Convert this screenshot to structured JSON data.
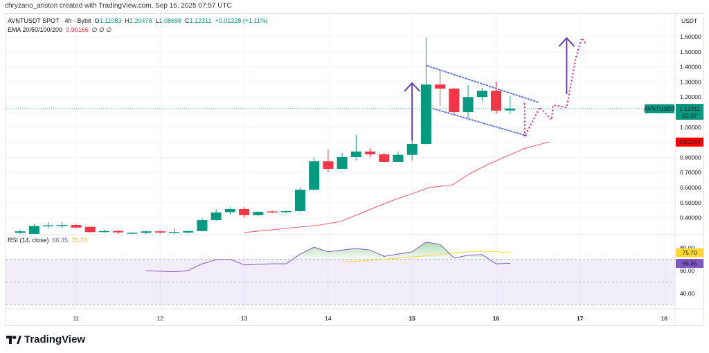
{
  "credit": "chryzano_ariston created with TradingView.com, Sep 16, 2025 07:57 UTC",
  "symbol": {
    "title": "AVNTUSDT SPOT · 4h · Bybit",
    "o_label": "O",
    "o": "1.11083",
    "h_label": "H",
    "h": "1.20478",
    "l_label": "L",
    "l": "1.08698",
    "c_label": "C",
    "c": "1.12311",
    "change": "+0.01228 (+1.11%)"
  },
  "ema_legend": {
    "label": "EMA 20/50/100/200",
    "value": "0.90166",
    "others": "∅  ∅  ∅"
  },
  "rsi_legend": {
    "label": "RSI (14, close)",
    "rsi": "66.35",
    "ma": "75.70"
  },
  "price_axis": {
    "currency": "USDT",
    "ticks": [
      "1.60000",
      "1.50000",
      "1.40000",
      "1.30000",
      "1.20000",
      "1.00000",
      "0.80000",
      "0.70000",
      "0.60000",
      "0.50000",
      "0.40000"
    ]
  },
  "rsi_axis": {
    "ticks": [
      "80.00",
      "60.00",
      "40.00"
    ]
  },
  "time_axis": {
    "ticks": [
      "11",
      "12",
      "13",
      "14",
      "15",
      "16",
      "17",
      "18"
    ]
  },
  "last_price": {
    "symbol": "AVNTUSDT",
    "price": "1.12311",
    "countdown": "02:37"
  },
  "ema_label": "0.90166",
  "rsi_labels": {
    "ma": "75.70",
    "rsi": "66.35"
  },
  "colors": {
    "up": "#089981",
    "down": "#f23645",
    "ema": "#f7525f",
    "rsi": "#7e57c2",
    "rsi_ma": "#fdd835",
    "drawing_line": "#5b6ee1",
    "arrow": "#673ab7",
    "projection": "#e91e63"
  },
  "logo": "TradingView",
  "chart_data": {
    "type": "candlestick",
    "interval": "4h",
    "price_range": [
      0.3,
      1.62
    ],
    "candles": [
      [
        0.3,
        0.32,
        0.28,
        0.31
      ],
      [
        0.29,
        0.36,
        0.28,
        0.345
      ],
      [
        0.345,
        0.37,
        0.33,
        0.35
      ],
      [
        0.35,
        0.37,
        0.33,
        0.352
      ],
      [
        0.352,
        0.36,
        0.33,
        0.335
      ],
      [
        0.34,
        0.342,
        0.3,
        0.305
      ],
      [
        0.305,
        0.32,
        0.3,
        0.312
      ],
      [
        0.312,
        0.32,
        0.29,
        0.303
      ],
      [
        0.3,
        0.302,
        0.29,
        0.301
      ],
      [
        0.3,
        0.315,
        0.29,
        0.31
      ],
      [
        0.31,
        0.315,
        0.295,
        0.302
      ],
      [
        0.302,
        0.33,
        0.295,
        0.305
      ],
      [
        0.302,
        0.315,
        0.295,
        0.312
      ],
      [
        0.312,
        0.4,
        0.31,
        0.384
      ],
      [
        0.384,
        0.455,
        0.38,
        0.435
      ],
      [
        0.437,
        0.47,
        0.42,
        0.458
      ],
      [
        0.458,
        0.47,
        0.4,
        0.417
      ],
      [
        0.417,
        0.445,
        0.41,
        0.439
      ],
      [
        0.442,
        0.45,
        0.43,
        0.437
      ],
      [
        0.437,
        0.45,
        0.43,
        0.444
      ],
      [
        0.444,
        0.6,
        0.44,
        0.586
      ],
      [
        0.586,
        0.8,
        0.58,
        0.774
      ],
      [
        0.774,
        0.855,
        0.7,
        0.724
      ],
      [
        0.724,
        0.83,
        0.724,
        0.802
      ],
      [
        0.802,
        0.95,
        0.78,
        0.839
      ],
      [
        0.839,
        0.86,
        0.8,
        0.82
      ],
      [
        0.82,
        0.83,
        0.77,
        0.77
      ],
      [
        0.77,
        0.84,
        0.77,
        0.817
      ],
      [
        0.817,
        0.92,
        0.78,
        0.889
      ],
      [
        0.889,
        1.595,
        0.885,
        1.283
      ],
      [
        1.283,
        1.38,
        1.141,
        1.256
      ],
      [
        1.256,
        1.26,
        1.08,
        1.1
      ],
      [
        1.1,
        1.28,
        1.06,
        1.2
      ],
      [
        1.2,
        1.26,
        1.17,
        1.242
      ],
      [
        1.242,
        1.302,
        1.09,
        1.11
      ],
      [
        1.11083,
        1.20478,
        1.08698,
        1.12311
      ]
    ],
    "ema20": [
      [
        13,
        0.302
      ],
      [
        13.9,
        0.352
      ],
      [
        14.15,
        0.375
      ],
      [
        14.35,
        0.421
      ],
      [
        14.55,
        0.467
      ],
      [
        14.8,
        0.522
      ],
      [
        15.0,
        0.559
      ],
      [
        15.2,
        0.6
      ],
      [
        15.48,
        0.618
      ],
      [
        15.7,
        0.696
      ],
      [
        15.93,
        0.761
      ],
      [
        16.33,
        0.857
      ],
      [
        16.63,
        0.903
      ]
    ],
    "rsi": {
      "start_bar": 9,
      "values": [
        60,
        59.5,
        59,
        60,
        66,
        69.5,
        70,
        65,
        65.5,
        66,
        66,
        74.5,
        80.5,
        76.5,
        78,
        79.5,
        78,
        72.5,
        74.5,
        76.5,
        85,
        83,
        71,
        73.5,
        74,
        66,
        66.35
      ]
    },
    "rsi_ma": {
      "start_bar": 23,
      "values": [
        67.5,
        68.2,
        69,
        70,
        71,
        72,
        73,
        74.2,
        75.5,
        76.5,
        77,
        76.5,
        75.7
      ]
    },
    "rsi_band": [
      30,
      70
    ],
    "drawings": {
      "triangle_upper": [
        [
          15.18,
          1.407
        ],
        [
          16.51,
          1.164
        ]
      ],
      "triangle_lower": [
        [
          15.25,
          1.123
        ],
        [
          16.36,
          0.944
        ]
      ],
      "arrows": [
        [
          [
            15.0,
            0.912
          ],
          [
            15.0,
            1.293
          ]
        ],
        [
          [
            16.84,
            1.219
          ],
          [
            16.84,
            1.591
          ]
        ]
      ],
      "projection": [
        [
          16.34,
          1.155
        ],
        [
          16.34,
          0.939
        ],
        [
          16.52,
          1.132
        ],
        [
          16.66,
          1.05
        ],
        [
          16.68,
          1.146
        ],
        [
          16.84,
          1.132
        ],
        [
          16.95,
          1.462
        ],
        [
          17.02,
          1.591
        ],
        [
          17.08,
          1.545
        ]
      ]
    }
  }
}
